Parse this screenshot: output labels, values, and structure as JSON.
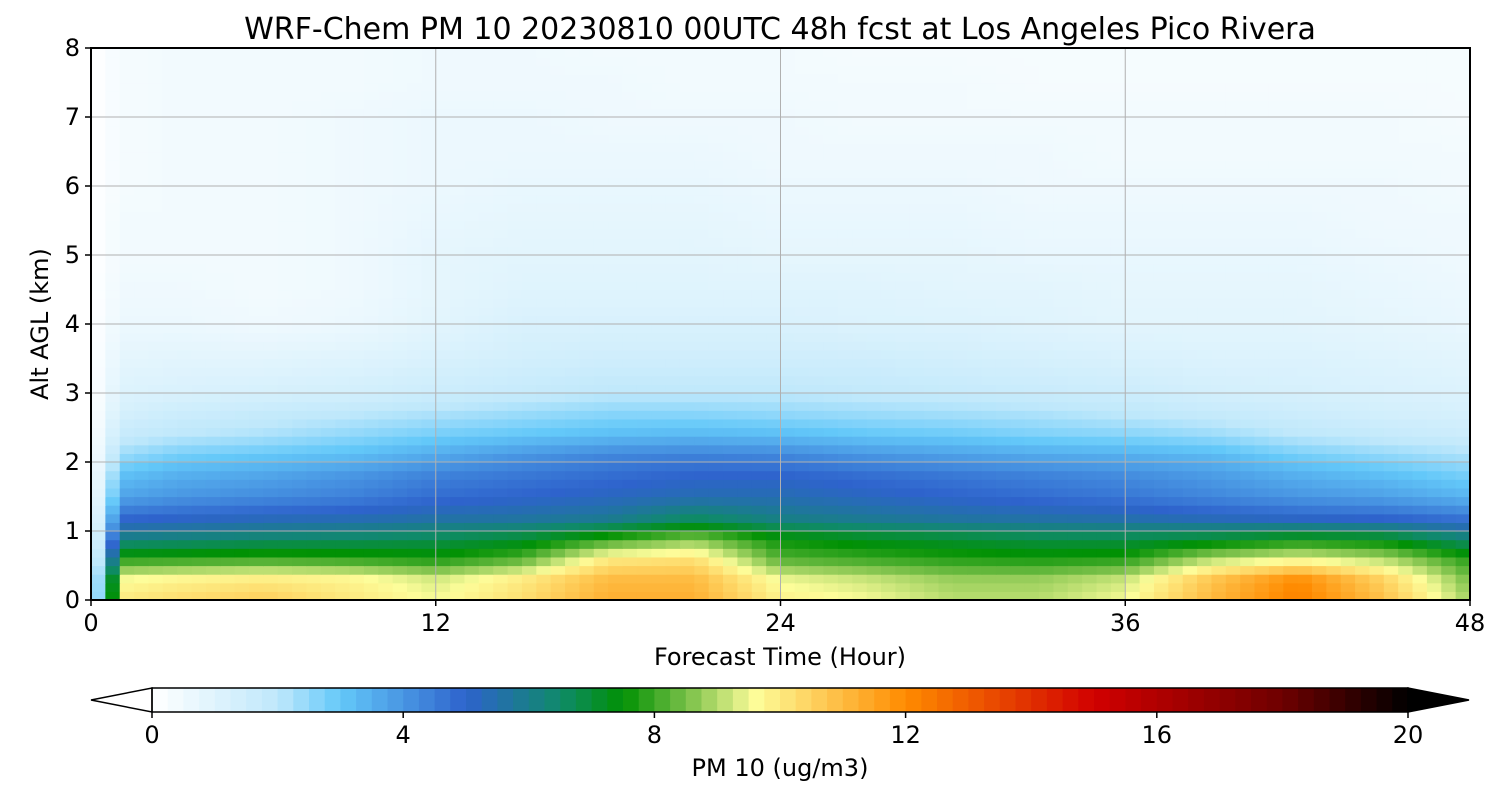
{
  "chart_data": {
    "type": "heatmap",
    "title": "WRF-Chem PM 10  20230810 00UTC 48h fcst at Los Angeles Pico Rivera",
    "xlabel": "Forecast Time (Hour)",
    "ylabel": "Alt AGL (km)",
    "xlim": [
      0,
      48
    ],
    "ylim": [
      0,
      8
    ],
    "x_ticks": [
      "0",
      "12",
      "24",
      "36",
      "48"
    ],
    "y_ticks": [
      "0",
      "1",
      "2",
      "3",
      "4",
      "5",
      "6",
      "7",
      "8"
    ],
    "grid": true,
    "x": [
      0,
      3,
      6,
      9,
      12,
      15,
      18,
      21,
      24,
      27,
      30,
      33,
      36,
      39,
      42,
      45,
      48
    ],
    "y": [
      0.05,
      0.3,
      0.6,
      0.9,
      1.2,
      1.5,
      1.8,
      2.1,
      2.4,
      2.7,
      3.0,
      3.5,
      4.0,
      4.5,
      5.0,
      5.5,
      6.0,
      6.5,
      7.0,
      7.5,
      8.0
    ],
    "z": [
      [
        9.8,
        10.2,
        10.5,
        10.0,
        9.5,
        10.2,
        11.2,
        11.2,
        9.8,
        9.5,
        9.0,
        9.0,
        9.5,
        11.0,
        12.2,
        10.8,
        8.8
      ],
      [
        9.5,
        9.8,
        10.0,
        9.8,
        9.3,
        10.0,
        11.0,
        11.0,
        9.5,
        9.2,
        8.8,
        8.8,
        9.2,
        10.8,
        12.0,
        10.5,
        8.5
      ],
      [
        7.8,
        7.9,
        8.0,
        7.9,
        7.7,
        8.2,
        10.0,
        10.2,
        8.2,
        8.0,
        7.8,
        7.7,
        7.8,
        9.0,
        9.5,
        9.0,
        7.8
      ],
      [
        6.0,
        6.2,
        6.4,
        6.5,
        6.7,
        7.0,
        7.8,
        8.5,
        7.5,
        7.2,
        7.0,
        6.8,
        6.8,
        7.0,
        7.4,
        7.2,
        6.3
      ],
      [
        4.8,
        5.0,
        5.2,
        5.3,
        5.5,
        5.6,
        5.8,
        6.5,
        6.0,
        5.8,
        5.6,
        5.5,
        5.4,
        5.2,
        5.0,
        4.9,
        4.6
      ],
      [
        3.6,
        4.0,
        4.2,
        4.4,
        4.8,
        5.0,
        5.2,
        5.4,
        5.4,
        5.2,
        5.0,
        4.8,
        4.6,
        4.3,
        4.0,
        3.8,
        3.4
      ],
      [
        3.0,
        3.5,
        3.7,
        4.0,
        4.4,
        4.6,
        4.8,
        5.0,
        5.0,
        4.8,
        4.6,
        4.4,
        4.2,
        3.9,
        3.5,
        3.2,
        2.8
      ],
      [
        2.2,
        2.8,
        3.0,
        3.2,
        3.6,
        4.0,
        4.3,
        4.4,
        4.3,
        4.0,
        3.8,
        3.6,
        3.5,
        3.3,
        2.8,
        2.5,
        2.2
      ],
      [
        1.6,
        2.0,
        2.2,
        2.5,
        2.8,
        3.0,
        3.2,
        3.3,
        3.2,
        3.0,
        2.9,
        2.7,
        2.6,
        2.4,
        2.0,
        1.8,
        1.6
      ],
      [
        1.2,
        1.6,
        1.8,
        2.0,
        2.2,
        2.4,
        2.6,
        2.6,
        2.5,
        2.4,
        2.3,
        2.2,
        2.0,
        1.8,
        1.6,
        1.4,
        1.3
      ],
      [
        1.0,
        1.2,
        1.3,
        1.4,
        1.6,
        1.8,
        2.0,
        2.0,
        2.0,
        1.9,
        1.8,
        1.7,
        1.6,
        1.4,
        1.3,
        1.2,
        1.1
      ],
      [
        0.8,
        0.9,
        0.9,
        1.0,
        1.2,
        1.4,
        1.5,
        1.5,
        1.5,
        1.5,
        1.4,
        1.3,
        1.2,
        1.1,
        1.1,
        1.0,
        0.9
      ],
      [
        0.6,
        0.6,
        0.5,
        0.6,
        0.9,
        1.2,
        1.2,
        1.2,
        1.2,
        1.1,
        1.1,
        1.0,
        0.9,
        0.9,
        0.9,
        0.8,
        0.7
      ],
      [
        0.5,
        0.5,
        0.4,
        0.5,
        0.8,
        1.0,
        1.0,
        1.0,
        1.0,
        1.0,
        0.9,
        0.9,
        0.8,
        0.8,
        0.8,
        0.7,
        0.6
      ],
      [
        0.4,
        0.4,
        0.4,
        0.5,
        0.8,
        0.9,
        0.9,
        0.9,
        0.8,
        0.8,
        0.8,
        0.7,
        0.7,
        0.7,
        0.7,
        0.6,
        0.5
      ],
      [
        0.4,
        0.4,
        0.4,
        0.5,
        0.7,
        0.8,
        0.8,
        0.8,
        0.7,
        0.7,
        0.7,
        0.6,
        0.6,
        0.6,
        0.6,
        0.5,
        0.5
      ],
      [
        0.3,
        0.4,
        0.4,
        0.5,
        0.6,
        0.7,
        0.7,
        0.7,
        0.6,
        0.6,
        0.6,
        0.5,
        0.5,
        0.5,
        0.5,
        0.5,
        0.4
      ],
      [
        0.3,
        0.4,
        0.4,
        0.5,
        0.6,
        0.6,
        0.6,
        0.6,
        0.5,
        0.5,
        0.5,
        0.5,
        0.4,
        0.4,
        0.4,
        0.4,
        0.4
      ],
      [
        0.3,
        0.4,
        0.4,
        0.5,
        0.6,
        0.6,
        0.5,
        0.5,
        0.5,
        0.4,
        0.4,
        0.4,
        0.4,
        0.4,
        0.4,
        0.4,
        0.3
      ],
      [
        0.3,
        0.4,
        0.4,
        0.4,
        0.5,
        0.5,
        0.5,
        0.4,
        0.4,
        0.4,
        0.4,
        0.3,
        0.3,
        0.3,
        0.3,
        0.3,
        0.3
      ],
      [
        0.3,
        0.4,
        0.4,
        0.4,
        0.5,
        0.5,
        0.4,
        0.4,
        0.4,
        0.3,
        0.3,
        0.3,
        0.3,
        0.3,
        0.3,
        0.3,
        0.3
      ]
    ],
    "colorbar": {
      "label": "PM 10  (ug/m3)",
      "vmin": 0,
      "vmax": 20,
      "ticks": [
        "0",
        "4",
        "8",
        "12",
        "16",
        "20"
      ],
      "extend": "both",
      "stops": [
        {
          "value": 0,
          "color": "#ffffff"
        },
        {
          "value": 2,
          "color": "#bfe8fb"
        },
        {
          "value": 3,
          "color": "#63c8f9"
        },
        {
          "value": 5,
          "color": "#2e63cc"
        },
        {
          "value": 6.5,
          "color": "#0f8a6a"
        },
        {
          "value": 7.5,
          "color": "#019104"
        },
        {
          "value": 8.5,
          "color": "#77bf47"
        },
        {
          "value": 9.6,
          "color": "#fdfd9a"
        },
        {
          "value": 12,
          "color": "#ff8b00"
        },
        {
          "value": 15,
          "color": "#d10000"
        },
        {
          "value": 18,
          "color": "#6e0000"
        },
        {
          "value": 20,
          "color": "#000000"
        }
      ]
    }
  }
}
